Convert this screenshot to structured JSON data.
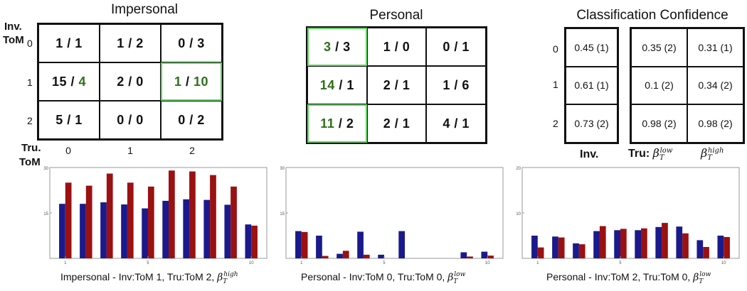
{
  "matrices": [
    {
      "title": "Impersonal",
      "rows": [
        [
          {
            "a": "1",
            "b": "1"
          },
          {
            "a": "1",
            "b": "2"
          },
          {
            "a": "0",
            "b": "3"
          }
        ],
        [
          {
            "a": "15",
            "b": "4",
            "bcolor": "#2f6f1a"
          },
          {
            "a": "2",
            "b": "0"
          },
          {
            "a": "1",
            "b": "10",
            "acolor": "#2f6f1a",
            "bcolor": "#2f6f1a",
            "hl": true
          }
        ],
        [
          {
            "a": "5",
            "b": "1"
          },
          {
            "a": "0",
            "b": "0"
          },
          {
            "a": "0",
            "b": "2"
          }
        ]
      ]
    },
    {
      "title": "Personal",
      "rows": [
        [
          {
            "a": "3",
            "b": "3",
            "acolor": "#2f6f1a",
            "hl": true
          },
          {
            "a": "1",
            "b": "0"
          },
          {
            "a": "0",
            "b": "1"
          }
        ],
        [
          {
            "a": "14",
            "b": "1",
            "acolor": "#2f6f1a"
          },
          {
            "a": "2",
            "b": "1"
          },
          {
            "a": "1",
            "b": "6"
          }
        ],
        [
          {
            "a": "11",
            "b": "2",
            "acolor": "#2f6f1a",
            "hl": true
          },
          {
            "a": "2",
            "b": "1"
          },
          {
            "a": "4",
            "b": "1"
          }
        ]
      ]
    }
  ],
  "axis_labels": {
    "inv": "Inv.",
    "tom": "ToM",
    "tru": "Tru.",
    "rows": [
      "0",
      "1",
      "2"
    ],
    "cols": [
      "0",
      "1",
      "2"
    ]
  },
  "confidence": {
    "title": "Classification Confidence",
    "rows": [
      "0",
      "1",
      "2"
    ],
    "inv": [
      "0.45 (1)",
      "0.61 (1)",
      "0.73 (2)"
    ],
    "low": [
      "0.35 (2)",
      "0.1 (2)",
      "0.98 (2)"
    ],
    "high": [
      "0.31 (1)",
      "0.34 (2)",
      "0.98 (2)"
    ],
    "footer_inv": "Inv.",
    "footer_tru": "Tru:",
    "beta": "β",
    "sub_t": "T",
    "sup_low": "low",
    "sup_high": "high"
  },
  "colors": {
    "blue": "#1a1a8c",
    "red": "#9b1010",
    "green": "#5fd35f"
  },
  "chart_data": [
    {
      "type": "bar",
      "ylim": [
        0,
        30
      ],
      "yticks": [
        0,
        15,
        30
      ],
      "xticks": [
        1,
        5,
        10
      ],
      "caption": "Impersonal - Inv:ToM 1, Tru:ToM 2, ",
      "caption_sup": "high",
      "series": [
        {
          "values": [
            18,
            18,
            18.5,
            17.8,
            16.5,
            19,
            19.5,
            19.3,
            17.7,
            11.2
          ]
        },
        {
          "values": [
            25,
            24,
            28,
            25,
            23.7,
            29,
            28.7,
            27.5,
            23.7,
            10.8
          ]
        }
      ]
    },
    {
      "type": "bar",
      "ylim": [
        0,
        30
      ],
      "yticks": [
        0,
        15,
        30
      ],
      "xticks": [
        1,
        5,
        10
      ],
      "caption": "Personal - Inv:ToM 0, Tru:ToM 0, ",
      "caption_sup": "low",
      "series": [
        {
          "values": [
            9,
            7.5,
            1.5,
            8.8,
            1.2,
            9,
            0,
            0,
            2,
            2.2
          ]
        },
        {
          "values": [
            8.7,
            0.8,
            2.5,
            1.2,
            0,
            0,
            0,
            0,
            0.6,
            0.9
          ]
        }
      ]
    },
    {
      "type": "bar",
      "ylim": [
        0,
        20
      ],
      "yticks": [
        0,
        10,
        20
      ],
      "xticks": [
        1,
        5,
        10
      ],
      "caption": "Personal - Inv:ToM 2, Tru:ToM 0, ",
      "caption_sup": "low",
      "series": [
        {
          "values": [
            5,
            4.8,
            3.3,
            6,
            6.2,
            6.2,
            6.9,
            7,
            4,
            5
          ]
        },
        {
          "values": [
            2.4,
            4.6,
            3.1,
            7.1,
            6.5,
            6.6,
            7.8,
            5.5,
            2.5,
            4.7
          ]
        }
      ]
    }
  ]
}
